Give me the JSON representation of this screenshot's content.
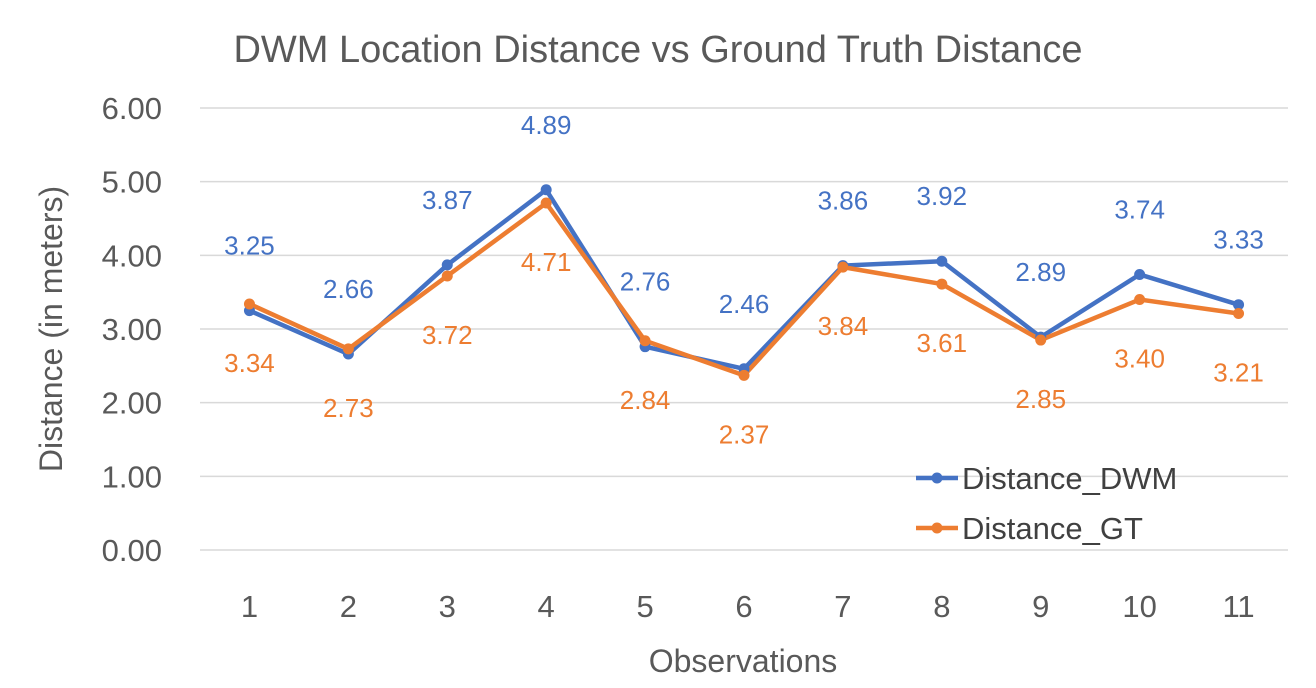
{
  "chart_data": {
    "type": "line",
    "title": "DWM Location Distance vs Ground Truth Distance",
    "xlabel": "Observations",
    "ylabel": "Distance (in meters)",
    "categories": [
      "1",
      "2",
      "3",
      "4",
      "5",
      "6",
      "7",
      "8",
      "9",
      "10",
      "11"
    ],
    "ylim": [
      0,
      6
    ],
    "yticks": [
      "0.00",
      "1.00",
      "2.00",
      "3.00",
      "4.00",
      "5.00",
      "6.00"
    ],
    "grid": true,
    "legend_position": "bottom-right",
    "series": [
      {
        "name": "Distance_DWM",
        "color": "#4472C4",
        "values": [
          3.25,
          2.66,
          3.87,
          4.89,
          2.76,
          2.46,
          3.86,
          3.92,
          2.89,
          3.74,
          3.33
        ],
        "labels": [
          "3.25",
          "2.66",
          "3.87",
          "4.89",
          "2.76",
          "2.46",
          "3.86",
          "3.92",
          "2.89",
          "3.74",
          "3.33"
        ],
        "label_position": "above"
      },
      {
        "name": "Distance_GT",
        "color": "#ED7D31",
        "values": [
          3.34,
          2.73,
          3.72,
          4.71,
          2.84,
          2.37,
          3.84,
          3.61,
          2.85,
          3.4,
          3.21
        ],
        "labels": [
          "3.34",
          "2.73",
          "3.72",
          "4.71",
          "2.84",
          "2.37",
          "3.84",
          "3.61",
          "2.85",
          "3.40",
          "3.21"
        ],
        "label_position": "below"
      }
    ]
  }
}
